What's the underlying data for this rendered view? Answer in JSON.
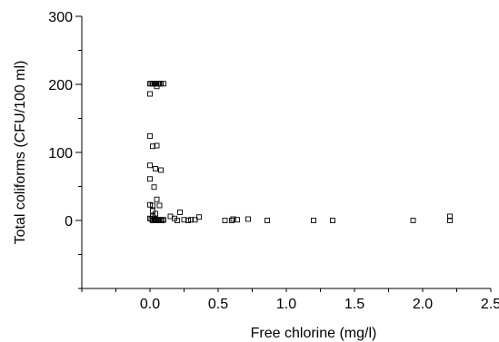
{
  "chart_data": {
    "type": "scatter",
    "title": "",
    "xlabel": "Free chlorine (mg/l)",
    "ylabel": "Total coliforms (CFU/100 ml)",
    "xlim": [
      -0.5,
      2.5
    ],
    "ylim": [
      -100,
      300
    ],
    "x_ticks": [
      0.0,
      0.5,
      1.0,
      1.5,
      2.0,
      2.5
    ],
    "x_tick_labels": [
      "0.0",
      "0.5",
      "1.0",
      "1.5",
      "2.0",
      "2.5"
    ],
    "y_ticks": [
      0,
      100,
      200,
      300
    ],
    "y_tick_labels": [
      "0",
      "100",
      "200",
      "300"
    ],
    "grid": false,
    "marker": "open-square",
    "points": [
      {
        "x": 0.0,
        "y": 201
      },
      {
        "x": 0.01,
        "y": 201
      },
      {
        "x": 0.02,
        "y": 201
      },
      {
        "x": 0.03,
        "y": 201
      },
      {
        "x": 0.04,
        "y": 201
      },
      {
        "x": 0.05,
        "y": 201
      },
      {
        "x": 0.06,
        "y": 201
      },
      {
        "x": 0.07,
        "y": 201
      },
      {
        "x": 0.08,
        "y": 201
      },
      {
        "x": 0.1,
        "y": 201
      },
      {
        "x": 0.05,
        "y": 197
      },
      {
        "x": 0.0,
        "y": 186
      },
      {
        "x": 0.0,
        "y": 124
      },
      {
        "x": 0.02,
        "y": 109
      },
      {
        "x": 0.05,
        "y": 110
      },
      {
        "x": 0.0,
        "y": 81
      },
      {
        "x": 0.04,
        "y": 76
      },
      {
        "x": 0.08,
        "y": 74
      },
      {
        "x": 0.0,
        "y": 61
      },
      {
        "x": 0.03,
        "y": 49
      },
      {
        "x": 0.05,
        "y": 31
      },
      {
        "x": 0.0,
        "y": 23
      },
      {
        "x": 0.02,
        "y": 22
      },
      {
        "x": 0.07,
        "y": 22
      },
      {
        "x": 0.02,
        "y": 14
      },
      {
        "x": 0.04,
        "y": 10
      },
      {
        "x": 0.02,
        "y": 6
      },
      {
        "x": 0.0,
        "y": 3
      },
      {
        "x": 0.01,
        "y": 2
      },
      {
        "x": 0.02,
        "y": 0
      },
      {
        "x": 0.03,
        "y": 1
      },
      {
        "x": 0.04,
        "y": 2
      },
      {
        "x": 0.05,
        "y": 0
      },
      {
        "x": 0.06,
        "y": 1
      },
      {
        "x": 0.07,
        "y": 0
      },
      {
        "x": 0.08,
        "y": 1
      },
      {
        "x": 0.09,
        "y": 0
      },
      {
        "x": 0.1,
        "y": 1
      },
      {
        "x": 0.15,
        "y": 6
      },
      {
        "x": 0.18,
        "y": 3
      },
      {
        "x": 0.2,
        "y": 0
      },
      {
        "x": 0.22,
        "y": 12
      },
      {
        "x": 0.25,
        "y": 1
      },
      {
        "x": 0.28,
        "y": 0
      },
      {
        "x": 0.3,
        "y": 1
      },
      {
        "x": 0.33,
        "y": 1
      },
      {
        "x": 0.36,
        "y": 5
      },
      {
        "x": 0.55,
        "y": 0
      },
      {
        "x": 0.6,
        "y": 0
      },
      {
        "x": 0.61,
        "y": 2
      },
      {
        "x": 0.64,
        "y": 1
      },
      {
        "x": 0.72,
        "y": 2
      },
      {
        "x": 0.86,
        "y": 0
      },
      {
        "x": 1.2,
        "y": 0
      },
      {
        "x": 1.34,
        "y": 0
      },
      {
        "x": 1.93,
        "y": 0
      },
      {
        "x": 2.2,
        "y": 0
      },
      {
        "x": 2.2,
        "y": 6
      }
    ]
  }
}
